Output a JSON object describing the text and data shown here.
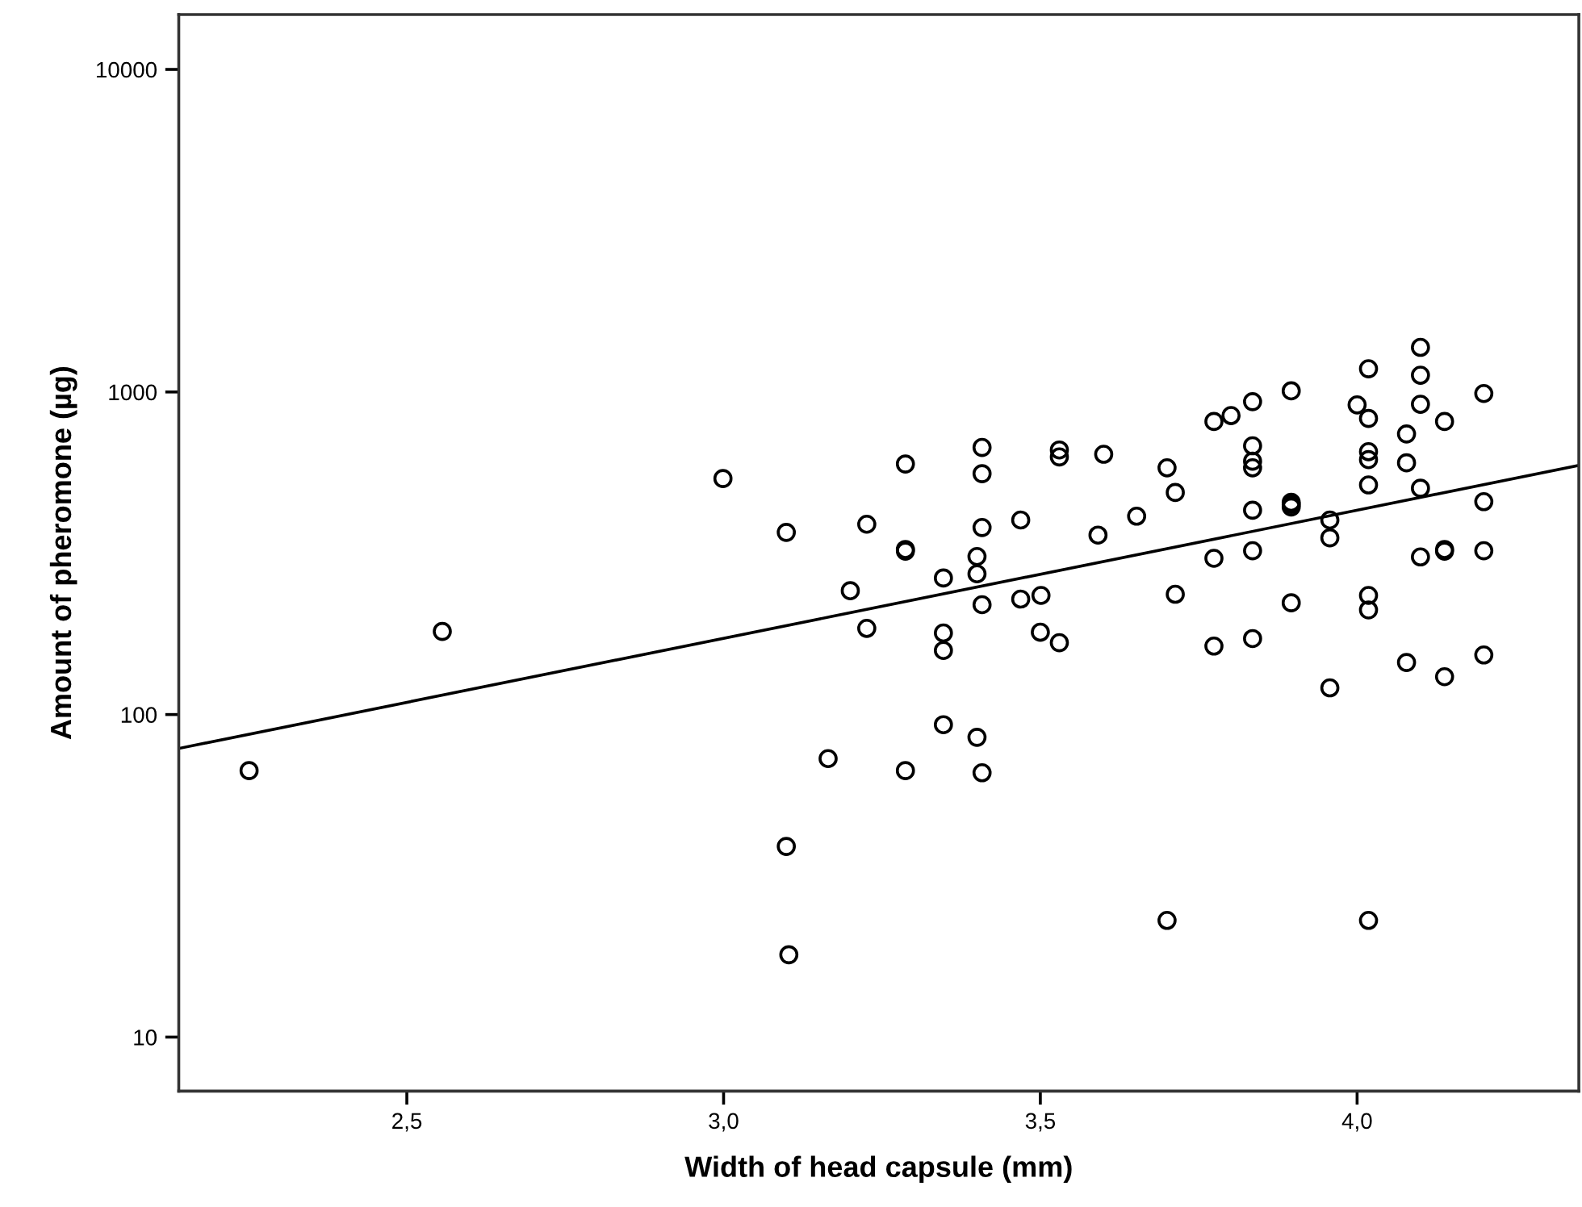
{
  "chart_data": {
    "type": "scatter",
    "xlabel": "Width of head capsule (mm)",
    "ylabel": "Amount of pheromone (µg)",
    "log": "y",
    "grid": false,
    "legend": false,
    "xlim": [
      2.14,
      4.35
    ],
    "ylim": [
      6.8,
      14800
    ],
    "xticks": [
      {
        "value": 2.5,
        "label": "2,5"
      },
      {
        "value": 3.0,
        "label": "3,0"
      },
      {
        "value": 3.5,
        "label": "3,5"
      },
      {
        "value": 4.0,
        "label": "4,0"
      }
    ],
    "yticks": [
      10,
      100,
      1000,
      10000
    ],
    "series": [
      {
        "color": "#000000",
        "marker": "circle",
        "x": [
          2.251,
          2.556,
          2.999,
          3.099,
          3.099,
          3.103,
          3.165,
          3.2,
          3.226,
          3.226,
          3.287,
          3.287,
          3.287,
          3.287,
          3.347,
          3.347,
          3.347,
          3.347,
          3.4,
          3.4,
          3.4,
          3.408,
          3.408,
          3.408,
          3.408,
          3.408,
          3.469,
          3.469,
          3.501,
          3.5,
          3.53,
          3.53,
          3.53,
          3.6,
          3.591,
          3.652,
          3.7,
          3.713,
          3.713,
          3.7,
          3.774,
          3.801,
          3.774,
          3.774,
          3.835,
          3.835,
          3.835,
          3.835,
          3.835,
          3.835,
          3.835,
          3.896,
          3.896,
          3.896,
          3.896,
          3.896,
          3.957,
          3.957,
          3.957,
          4.0,
          4.018,
          4.018,
          4.018,
          4.018,
          4.018,
          4.018,
          4.018,
          4.018,
          4.078,
          4.078,
          4.078,
          4.1,
          4.1,
          4.1,
          4.1,
          4.1,
          4.138,
          4.138,
          4.138,
          4.138,
          4.2,
          4.2,
          4.2,
          4.2
        ],
        "values": [
          67,
          181,
          539,
          367,
          39,
          18,
          73,
          242,
          389,
          185,
          598,
          321,
          325,
          67,
          265,
          179,
          158,
          93,
          309,
          273,
          85,
          673,
          558,
          380,
          219,
          66,
          401,
          228,
          234,
          180,
          167,
          661,
          629,
          641,
          360,
          412,
          582,
          488,
          236,
          23,
          810,
          845,
          305,
          163,
          933,
          681,
          610,
          582,
          430,
          322,
          172,
          1008,
          455,
          448,
          440,
          222,
          401,
          353,
          121,
          912,
          1180,
          828,
          653,
          617,
          515,
          234,
          211,
          23,
          741,
          603,
          145,
          1375,
          1127,
          916,
          503,
          308,
          810,
          321,
          325,
          131,
          989,
          457,
          322,
          153
        ]
      },
      {
        "type": "line",
        "color": "#000000",
        "marker": "none",
        "line_style": "solid",
        "x": [
          2.14,
          4.35
        ],
        "values": [
          78.5,
          592
        ]
      }
    ]
  }
}
